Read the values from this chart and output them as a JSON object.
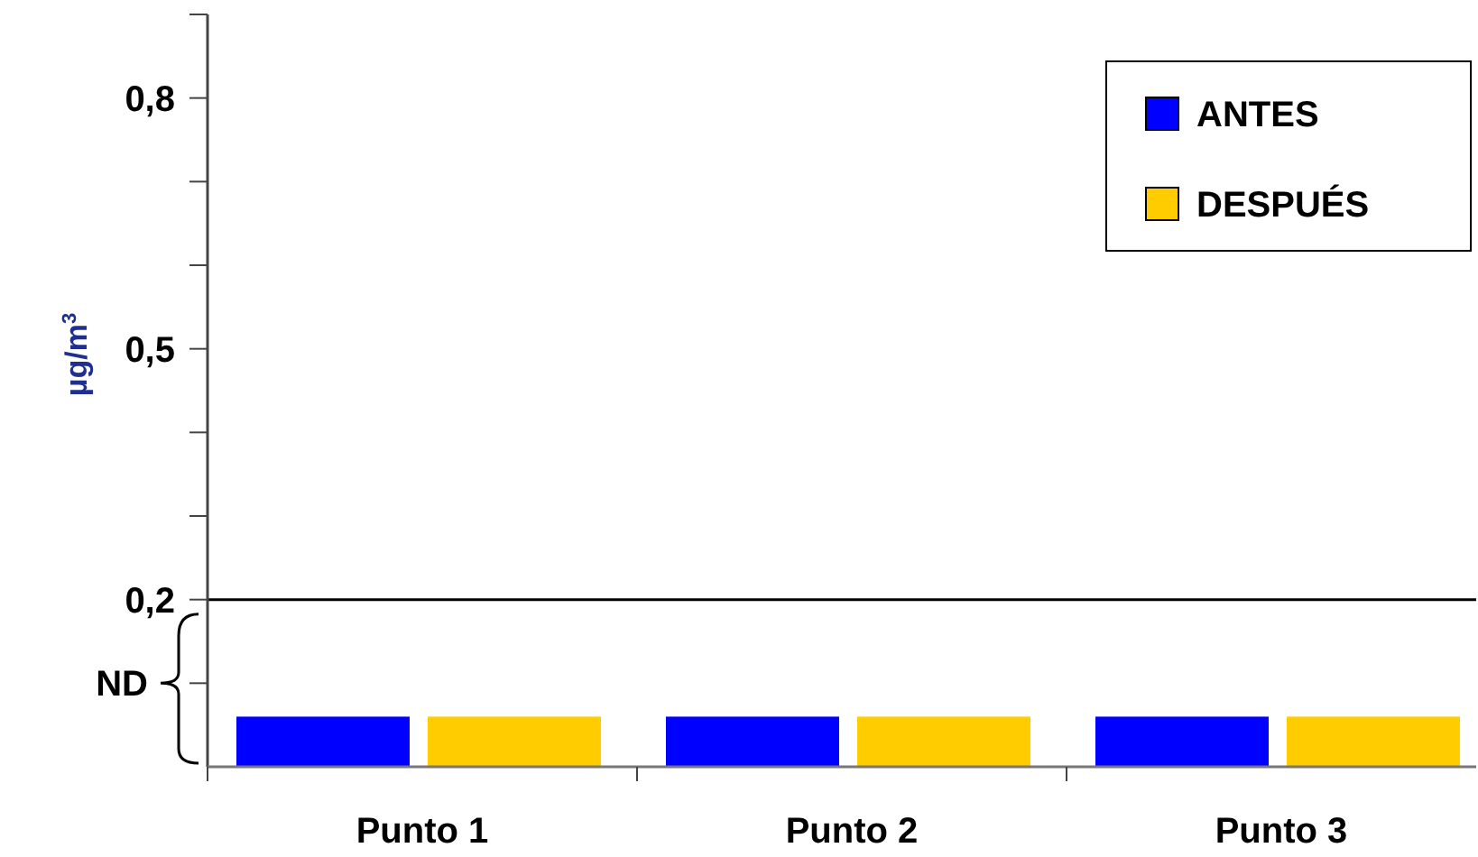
{
  "chart_data": {
    "type": "bar",
    "categories": [
      "Punto 1",
      "Punto 2",
      "Punto 3"
    ],
    "series": [
      {
        "name": "ANTES",
        "color": "#0000ff",
        "values": [
          0.06,
          0.06,
          0.06
        ]
      },
      {
        "name": "DESPUÉS",
        "color": "#ffcc00",
        "values": [
          0.06,
          0.06,
          0.06
        ]
      }
    ],
    "ylabel": "µg/m$^{3}$",
    "ylim": [
      0,
      0.9
    ],
    "yticks": [
      {
        "value": 0.1,
        "label": null
      },
      {
        "value": 0.2,
        "label": "0,2"
      },
      {
        "value": 0.3,
        "label": null
      },
      {
        "value": 0.4,
        "label": null
      },
      {
        "value": 0.5,
        "label": "0,5"
      },
      {
        "value": 0.6,
        "label": null
      },
      {
        "value": 0.7,
        "label": null
      },
      {
        "value": 0.8,
        "label": "0,8"
      },
      {
        "value": 0.9,
        "label": null
      }
    ],
    "ref_lines": [
      {
        "axis": "y",
        "value": 0.2,
        "color": "#000000"
      }
    ],
    "annotations": [
      "ND"
    ],
    "grid": false,
    "legend": "top right"
  }
}
